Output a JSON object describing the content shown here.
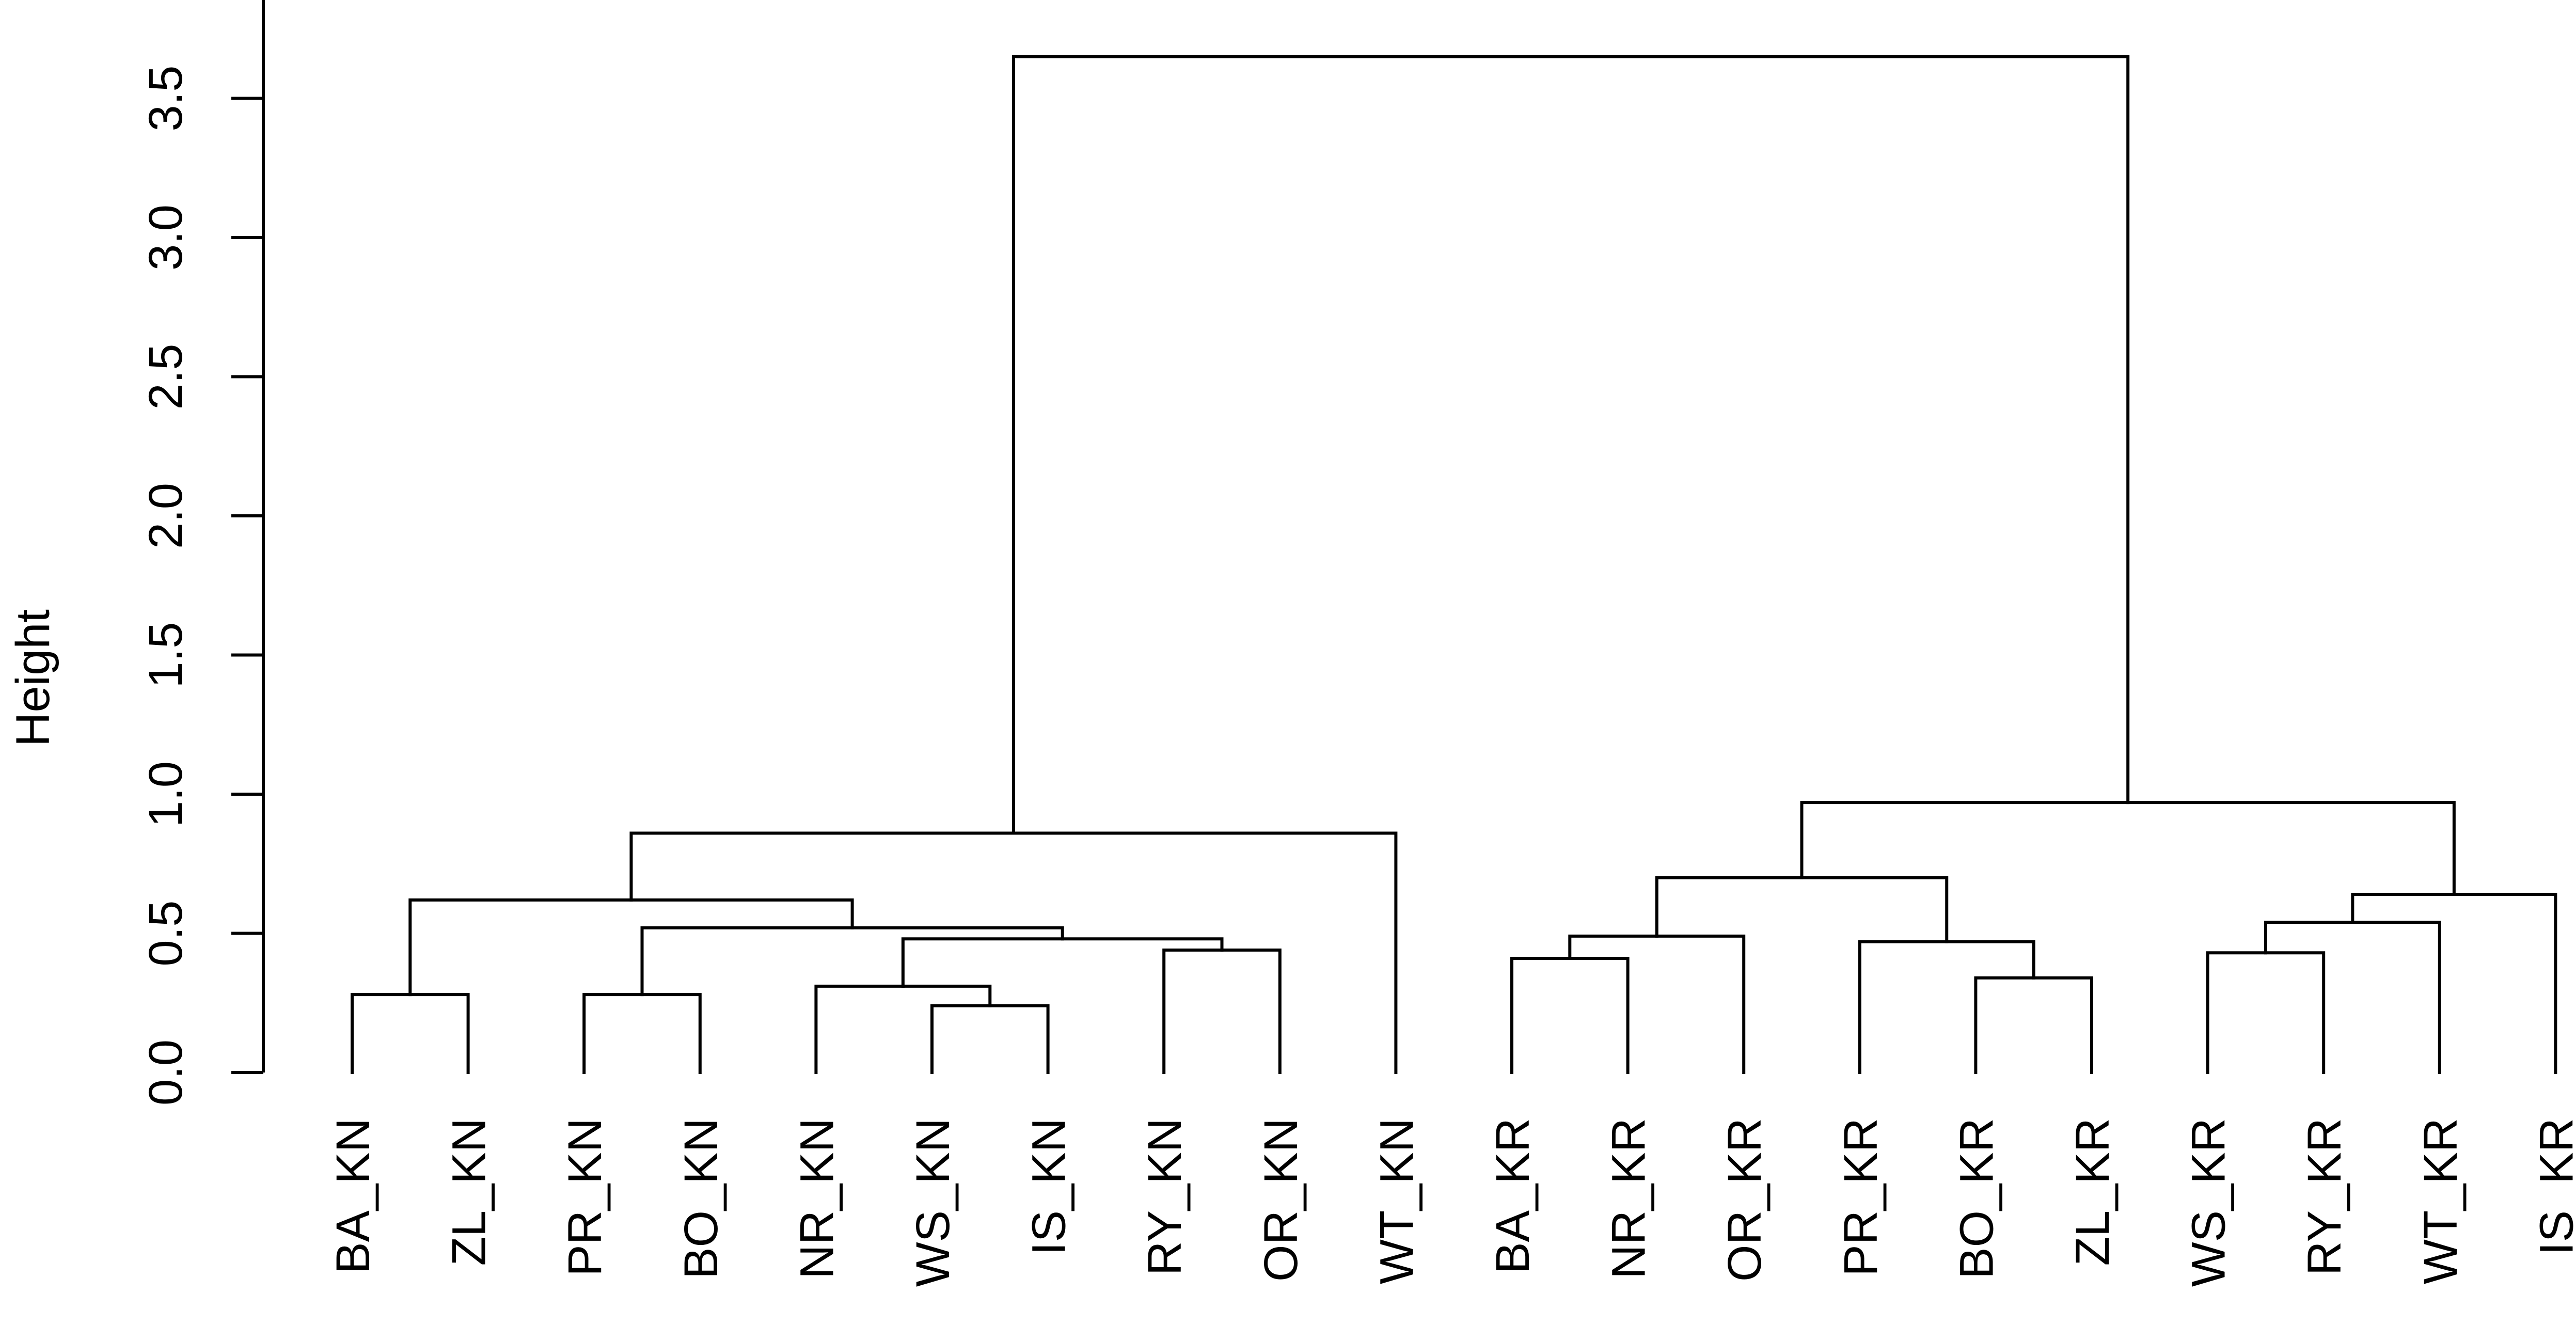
{
  "chart_data": {
    "type": "dendrogram",
    "ylabel": "Height",
    "ylim": [
      0,
      3.8
    ],
    "yticks": [
      "0.0",
      "0.5",
      "1.0",
      "1.5",
      "2.0",
      "2.5",
      "3.0",
      "3.5"
    ],
    "labels": [
      "BA_KN",
      "ZL_KN",
      "PR_KN",
      "BO_KN",
      "NR_KN",
      "WS_KN",
      "IS_KN",
      "RY_KN",
      "OR_KN",
      "WT_KN",
      "BA_KR",
      "NR_KR",
      "OR_KR",
      "PR_KR",
      "BO_KR",
      "ZL_KR",
      "WS_KR",
      "RY_KR",
      "WT_KR",
      "IS_KR"
    ],
    "merges": [
      {
        "id": "m1",
        "left": "BA_KN",
        "right": "ZL_KN",
        "height": 0.28
      },
      {
        "id": "m2",
        "left": "PR_KN",
        "right": "BO_KN",
        "height": 0.28
      },
      {
        "id": "m3",
        "left": "WS_KN",
        "right": "IS_KN",
        "height": 0.24
      },
      {
        "id": "m4",
        "left": "NR_KN",
        "right": "m3",
        "height": 0.31
      },
      {
        "id": "m5",
        "left": "RY_KN",
        "right": "OR_KN",
        "height": 0.44
      },
      {
        "id": "m6",
        "left": "m4",
        "right": "m5",
        "height": 0.48
      },
      {
        "id": "m7",
        "left": "m2",
        "right": "m6",
        "height": 0.52
      },
      {
        "id": "m8",
        "left": "m1",
        "right": "m7",
        "height": 0.62
      },
      {
        "id": "m9",
        "left": "m8",
        "right": "WT_KN",
        "height": 0.86
      },
      {
        "id": "m10",
        "left": "BA_KR",
        "right": "NR_KR",
        "height": 0.41
      },
      {
        "id": "m11",
        "left": "m10",
        "right": "OR_KR",
        "height": 0.49
      },
      {
        "id": "m12",
        "left": "BO_KR",
        "right": "ZL_KR",
        "height": 0.34
      },
      {
        "id": "m13",
        "left": "PR_KR",
        "right": "m12",
        "height": 0.47
      },
      {
        "id": "m14",
        "left": "m11",
        "right": "m13",
        "height": 0.7
      },
      {
        "id": "m15",
        "left": "WS_KR",
        "right": "RY_KR",
        "height": 0.43
      },
      {
        "id": "m16",
        "left": "m15",
        "right": "WT_KR",
        "height": 0.54
      },
      {
        "id": "m17",
        "left": "m16",
        "right": "IS_KR",
        "height": 0.64
      },
      {
        "id": "m18",
        "left": "m14",
        "right": "m17",
        "height": 0.97
      },
      {
        "id": "m19",
        "left": "m9",
        "right": "m18",
        "height": 3.65
      }
    ]
  }
}
